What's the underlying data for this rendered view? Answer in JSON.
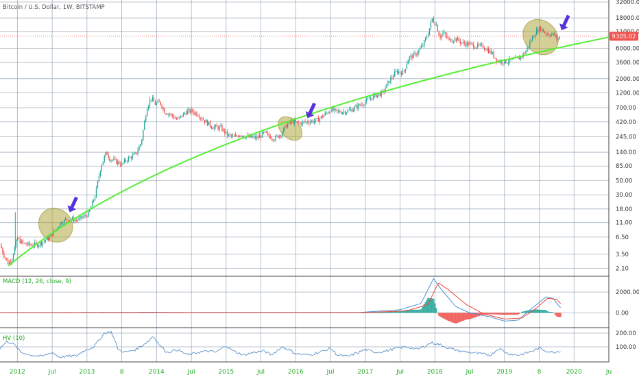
{
  "chart_data": {
    "type": "candlestick",
    "title": "Bitcoin / U.S. Dollar, 1W, BITSTAMP",
    "last_price_label": "9305.02",
    "colors": {
      "up": "#26a69a",
      "down": "#ef5350",
      "trendline": "#55ee33",
      "ellipse_fill": "#a8a030",
      "arrow": "#5533dd",
      "grid": "#8899aa",
      "macd_line": "#4c8fd6",
      "signal_line": "#ee4433",
      "hv_line": "#5a8fc8",
      "price_line": "#ef5350",
      "label_bg": "#ef5350",
      "xlabel": "#22aa22"
    },
    "price_axis": {
      "scale": "log",
      "range": [
        1.7,
        32000
      ],
      "ticks": [
        "32000.00",
        "18000.00",
        "11000.00",
        "6000.00",
        "3600.00",
        "2000.00",
        "1200.00",
        "700.00",
        "420.00",
        "245.00",
        "140.00",
        "85.00",
        "50.00",
        "30.00",
        "18.00",
        "11.00",
        "6.50",
        "3.50",
        "2.10"
      ]
    },
    "x_axis": {
      "range": [
        2011.75,
        2020.5
      ],
      "labels": [
        {
          "t": 2012.0,
          "text": "2012"
        },
        {
          "t": 2012.5,
          "text": "Jul"
        },
        {
          "t": 2013.0,
          "text": "2013"
        },
        {
          "t": 2013.5,
          "text": "8"
        },
        {
          "t": 2014.0,
          "text": "2014"
        },
        {
          "t": 2014.5,
          "text": "Jul"
        },
        {
          "t": 2015.0,
          "text": "2015"
        },
        {
          "t": 2015.5,
          "text": "Jul"
        },
        {
          "t": 2016.0,
          "text": "2016"
        },
        {
          "t": 2016.5,
          "text": "Jul"
        },
        {
          "t": 2017.0,
          "text": "2017"
        },
        {
          "t": 2017.5,
          "text": "Jul"
        },
        {
          "t": 2018.0,
          "text": "2018"
        },
        {
          "t": 2018.5,
          "text": "Jul"
        },
        {
          "t": 2019.0,
          "text": "2019"
        },
        {
          "t": 2019.5,
          "text": "8"
        },
        {
          "t": 2020.0,
          "text": "2020"
        },
        {
          "t": 2020.5,
          "text": "Ju"
        }
      ],
      "grid": [
        2012.0,
        2012.5,
        2013.0,
        2013.5,
        2014.0,
        2014.5,
        2015.0,
        2015.5,
        2016.0,
        2016.5,
        2017.0,
        2017.5,
        2018.0,
        2018.5,
        2019.0,
        2019.5,
        2020.0,
        2020.5
      ]
    },
    "price_keypoints": [
      [
        2011.75,
        5
      ],
      [
        2011.8,
        3.5
      ],
      [
        2011.87,
        2.5
      ],
      [
        2011.92,
        3
      ],
      [
        2012.0,
        6.2
      ],
      [
        2012.07,
        5.2
      ],
      [
        2012.17,
        4.9
      ],
      [
        2012.3,
        5
      ],
      [
        2012.45,
        6.3
      ],
      [
        2012.55,
        8.5
      ],
      [
        2012.62,
        11
      ],
      [
        2012.72,
        12.5
      ],
      [
        2012.85,
        12
      ],
      [
        2012.95,
        13.5
      ],
      [
        2013.02,
        15
      ],
      [
        2013.12,
        30
      ],
      [
        2013.2,
        85
      ],
      [
        2013.28,
        140
      ],
      [
        2013.33,
        110
      ],
      [
        2013.42,
        100
      ],
      [
        2013.5,
        90
      ],
      [
        2013.58,
        110
      ],
      [
        2013.7,
        130
      ],
      [
        2013.78,
        200
      ],
      [
        2013.86,
        700
      ],
      [
        2013.92,
        1000
      ],
      [
        2013.98,
        800
      ],
      [
        2014.05,
        850
      ],
      [
        2014.12,
        600
      ],
      [
        2014.2,
        550
      ],
      [
        2014.3,
        450
      ],
      [
        2014.42,
        600
      ],
      [
        2014.5,
        620
      ],
      [
        2014.6,
        550
      ],
      [
        2014.68,
        450
      ],
      [
        2014.8,
        350
      ],
      [
        2014.92,
        340
      ],
      [
        2015.02,
        260
      ],
      [
        2015.12,
        240
      ],
      [
        2015.2,
        270
      ],
      [
        2015.32,
        240
      ],
      [
        2015.45,
        235
      ],
      [
        2015.55,
        280
      ],
      [
        2015.62,
        250
      ],
      [
        2015.7,
        230
      ],
      [
        2015.8,
        280
      ],
      [
        2015.87,
        380
      ],
      [
        2015.95,
        430
      ],
      [
        2016.05,
        400
      ],
      [
        2016.15,
        420
      ],
      [
        2016.3,
        440
      ],
      [
        2016.42,
        550
      ],
      [
        2016.5,
        650
      ],
      [
        2016.6,
        600
      ],
      [
        2016.75,
        620
      ],
      [
        2016.85,
        700
      ],
      [
        2016.95,
        800
      ],
      [
        2017.05,
        950
      ],
      [
        2017.15,
        1100
      ],
      [
        2017.25,
        1200
      ],
      [
        2017.35,
        1900
      ],
      [
        2017.45,
        2600
      ],
      [
        2017.55,
        2500
      ],
      [
        2017.62,
        4200
      ],
      [
        2017.72,
        4800
      ],
      [
        2017.82,
        6500
      ],
      [
        2017.9,
        10000
      ],
      [
        2017.96,
        17500
      ],
      [
        2018.02,
        14000
      ],
      [
        2018.07,
        9000
      ],
      [
        2018.12,
        10500
      ],
      [
        2018.2,
        8000
      ],
      [
        2018.3,
        8500
      ],
      [
        2018.4,
        7200
      ],
      [
        2018.5,
        7000
      ],
      [
        2018.58,
        6500
      ],
      [
        2018.7,
        6400
      ],
      [
        2018.82,
        5000
      ],
      [
        2018.9,
        3800
      ],
      [
        2019.0,
        3700
      ],
      [
        2019.1,
        3900
      ],
      [
        2019.2,
        4100
      ],
      [
        2019.3,
        5200
      ],
      [
        2019.38,
        8000
      ],
      [
        2019.45,
        11000
      ],
      [
        2019.52,
        12500
      ],
      [
        2019.58,
        10500
      ],
      [
        2019.65,
        10000
      ],
      [
        2019.72,
        9700
      ],
      [
        2019.76,
        8200
      ],
      [
        2019.8,
        9300
      ]
    ],
    "trendline": [
      [
        2011.87,
        2.3
      ],
      [
        2020.5,
        9000
      ]
    ],
    "ellipses": [
      {
        "t": 2012.55,
        "price": 10,
        "rx_weeks": 12,
        "ry_decades": 0.28
      },
      {
        "t": 2015.92,
        "price": 330,
        "rx_weeks": 7,
        "ry_decades": 0.22
      },
      {
        "t": 2019.52,
        "price": 9000,
        "rx_weeks": 12,
        "ry_decades": 0.3
      }
    ],
    "arrows": [
      {
        "t": 2012.75,
        "price": 16
      },
      {
        "t": 2016.17,
        "price": 480
      },
      {
        "t": 2019.82,
        "price": 11500
      }
    ],
    "macd": {
      "label": "MACD (12, 26, close, 9)",
      "ticks": [
        "2000.00",
        "0.00"
      ],
      "range": [
        -1300,
        3400
      ],
      "keypoints_macd": [
        [
          2011.75,
          0
        ],
        [
          2013.9,
          50
        ],
        [
          2014.5,
          30
        ],
        [
          2016.9,
          30
        ],
        [
          2017.5,
          300
        ],
        [
          2017.8,
          900
        ],
        [
          2017.98,
          3300
        ],
        [
          2018.1,
          2200
        ],
        [
          2018.3,
          600
        ],
        [
          2018.5,
          0
        ],
        [
          2018.8,
          -400
        ],
        [
          2019.0,
          -800
        ],
        [
          2019.2,
          -700
        ],
        [
          2019.35,
          200
        ],
        [
          2019.5,
          1000
        ],
        [
          2019.6,
          1550
        ],
        [
          2019.7,
          1400
        ],
        [
          2019.8,
          500
        ]
      ],
      "keypoints_signal": [
        [
          2011.75,
          0
        ],
        [
          2013.95,
          30
        ],
        [
          2014.6,
          20
        ],
        [
          2017.0,
          20
        ],
        [
          2017.6,
          200
        ],
        [
          2017.9,
          800
        ],
        [
          2018.05,
          2900
        ],
        [
          2018.2,
          2200
        ],
        [
          2018.45,
          800
        ],
        [
          2018.7,
          -100
        ],
        [
          2019.0,
          -600
        ],
        [
          2019.25,
          -500
        ],
        [
          2019.45,
          400
        ],
        [
          2019.62,
          1400
        ],
        [
          2019.75,
          1300
        ],
        [
          2019.82,
          800
        ]
      ]
    },
    "hv": {
      "label": "HV (10)",
      "ticks": [
        "200.00",
        "100.00"
      ],
      "range": [
        0,
        230
      ],
      "keypoints": [
        [
          2011.75,
          90
        ],
        [
          2011.85,
          140
        ],
        [
          2011.95,
          120
        ],
        [
          2012.05,
          60
        ],
        [
          2012.2,
          40
        ],
        [
          2012.35,
          30
        ],
        [
          2012.5,
          60
        ],
        [
          2012.6,
          25
        ],
        [
          2012.7,
          30
        ],
        [
          2012.85,
          35
        ],
        [
          2012.95,
          70
        ],
        [
          2013.1,
          100
        ],
        [
          2013.25,
          200
        ],
        [
          2013.35,
          210
        ],
        [
          2013.45,
          80
        ],
        [
          2013.55,
          60
        ],
        [
          2013.7,
          80
        ],
        [
          2013.88,
          140
        ],
        [
          2013.95,
          180
        ],
        [
          2014.05,
          110
        ],
        [
          2014.15,
          60
        ],
        [
          2014.3,
          80
        ],
        [
          2014.45,
          40
        ],
        [
          2014.6,
          60
        ],
        [
          2014.75,
          70
        ],
        [
          2014.85,
          60
        ],
        [
          2015.0,
          110
        ],
        [
          2015.1,
          70
        ],
        [
          2015.25,
          40
        ],
        [
          2015.4,
          60
        ],
        [
          2015.55,
          70
        ],
        [
          2015.65,
          40
        ],
        [
          2015.8,
          100
        ],
        [
          2015.9,
          80
        ],
        [
          2016.0,
          50
        ],
        [
          2016.2,
          40
        ],
        [
          2016.4,
          70
        ],
        [
          2016.5,
          90
        ],
        [
          2016.6,
          40
        ],
        [
          2016.75,
          30
        ],
        [
          2016.9,
          60
        ],
        [
          2017.0,
          80
        ],
        [
          2017.15,
          60
        ],
        [
          2017.3,
          70
        ],
        [
          2017.45,
          90
        ],
        [
          2017.6,
          100
        ],
        [
          2017.75,
          80
        ],
        [
          2017.95,
          130
        ],
        [
          2018.05,
          120
        ],
        [
          2018.2,
          90
        ],
        [
          2018.35,
          70
        ],
        [
          2018.5,
          60
        ],
        [
          2018.65,
          50
        ],
        [
          2018.8,
          40
        ],
        [
          2018.92,
          90
        ],
        [
          2019.05,
          50
        ],
        [
          2019.2,
          40
        ],
        [
          2019.35,
          60
        ],
        [
          2019.5,
          90
        ],
        [
          2019.6,
          70
        ],
        [
          2019.7,
          60
        ],
        [
          2019.8,
          70
        ]
      ]
    }
  }
}
